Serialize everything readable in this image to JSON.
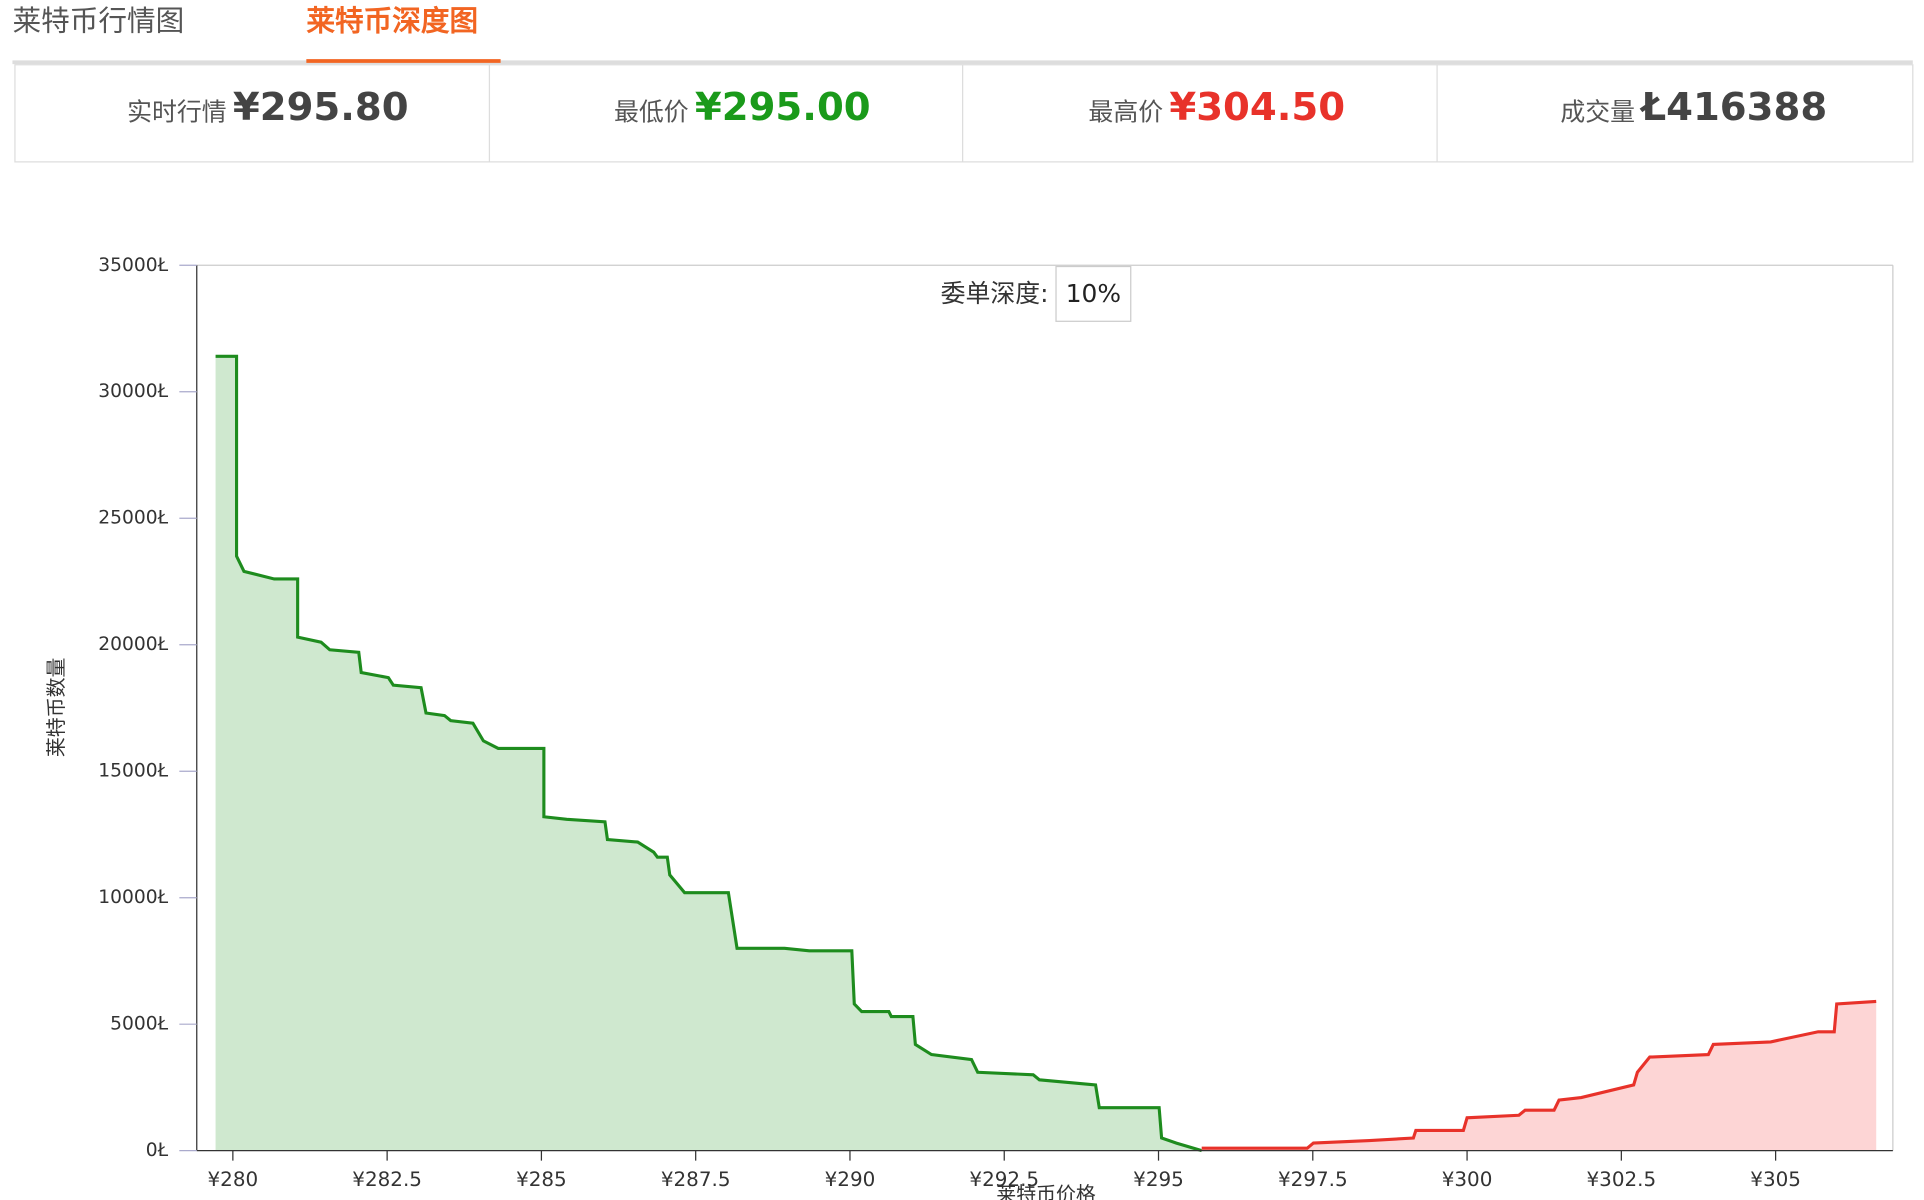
{
  "tabs": [
    "莱特币行情图",
    "莱特币深度图"
  ],
  "stats": [
    {
      "label": "实时行情",
      "value": "¥295.80"
    },
    {
      "label": "最低价",
      "value": "¥295.00"
    },
    {
      "label": "最高价",
      "value": "¥304.50"
    },
    {
      "label": "成交量",
      "value": "Ł416388"
    }
  ],
  "chart_data": {
    "type": "area",
    "depth_label": "委单深度:",
    "depth_value": "10%",
    "y_label": "莱特币数量",
    "x_label": "莱特币价格",
    "xlim": [
      279.415,
      306.9
    ],
    "ylim": [
      0,
      35000
    ],
    "xticks": [
      {
        "value": 280,
        "label": "¥280"
      },
      {
        "value": 282.5,
        "label": "¥282.5"
      },
      {
        "value": 285,
        "label": "¥285"
      },
      {
        "value": 287.5,
        "label": "¥287.5"
      },
      {
        "value": 290,
        "label": "¥290"
      },
      {
        "value": 292.5,
        "label": "¥292.5"
      },
      {
        "value": 295,
        "label": "¥295"
      },
      {
        "value": 297.5,
        "label": "¥297.5"
      },
      {
        "value": 300,
        "label": "¥300"
      },
      {
        "value": 302.5,
        "label": "¥302.5"
      },
      {
        "value": 305,
        "label": "¥305"
      }
    ],
    "yticks": [
      {
        "value": 0,
        "label": "0Ł"
      },
      {
        "value": 5000,
        "label": "5000Ł"
      },
      {
        "value": 10000,
        "label": "10000Ł"
      },
      {
        "value": 15000,
        "label": "15000Ł"
      },
      {
        "value": 20000,
        "label": "20000Ł"
      },
      {
        "value": 25000,
        "label": "25000Ł"
      },
      {
        "value": 30000,
        "label": "30000Ł"
      },
      {
        "value": 35000,
        "label": "35000Ł"
      }
    ],
    "series": [
      {
        "color": "#1e8c1e",
        "fill": "#cfe8cf",
        "x": [
          279.72,
          280.06,
          280.06,
          280.18,
          280.67,
          281.05,
          281.05,
          281.43,
          281.57,
          282.04,
          282.08,
          282.52,
          282.6,
          283.05,
          283.13,
          283.43,
          283.53,
          283.89,
          284.06,
          284.3,
          285.04,
          285.04,
          285.41,
          286.03,
          286.07,
          286.56,
          286.82,
          286.88,
          287.04,
          287.08,
          287.32,
          288.03,
          288.17,
          288.94,
          289.34,
          290.03,
          290.07,
          290.19,
          290.63,
          290.67,
          291.02,
          291.06,
          291.32,
          291.97,
          292.07,
          292.97,
          293.07,
          293.98,
          294.04,
          295.01,
          295.05,
          295.29,
          295.7
        ],
        "values": [
          31400,
          31400,
          23500,
          22900,
          22600,
          22600,
          20300,
          20100,
          19800,
          19700,
          18900,
          18700,
          18400,
          18300,
          17300,
          17200,
          17000,
          16900,
          16200,
          15900,
          15900,
          13200,
          13100,
          13000,
          12300,
          12200,
          11800,
          11600,
          11600,
          10900,
          10200,
          10200,
          8000,
          8000,
          7900,
          7900,
          5800,
          5500,
          5500,
          5300,
          5300,
          4200,
          3800,
          3600,
          3100,
          3000,
          2800,
          2600,
          1700,
          1700,
          500,
          300,
          0
        ]
      },
      {
        "color": "#e8322a",
        "fill": "#fdd5d5",
        "x": [
          295.7,
          297.41,
          297.51,
          298.42,
          299.13,
          299.17,
          299.94,
          300.0,
          300.84,
          300.94,
          301.41,
          301.49,
          301.85,
          302.7,
          302.76,
          302.96,
          303.91,
          303.99,
          304.92,
          305.69,
          305.95,
          305.99,
          306.63
        ],
        "values": [
          100,
          100,
          300,
          400,
          500,
          800,
          800,
          1300,
          1400,
          1600,
          1600,
          2000,
          2100,
          2600,
          3100,
          3700,
          3800,
          4200,
          4300,
          4700,
          4700,
          5800,
          5900
        ]
      }
    ]
  }
}
